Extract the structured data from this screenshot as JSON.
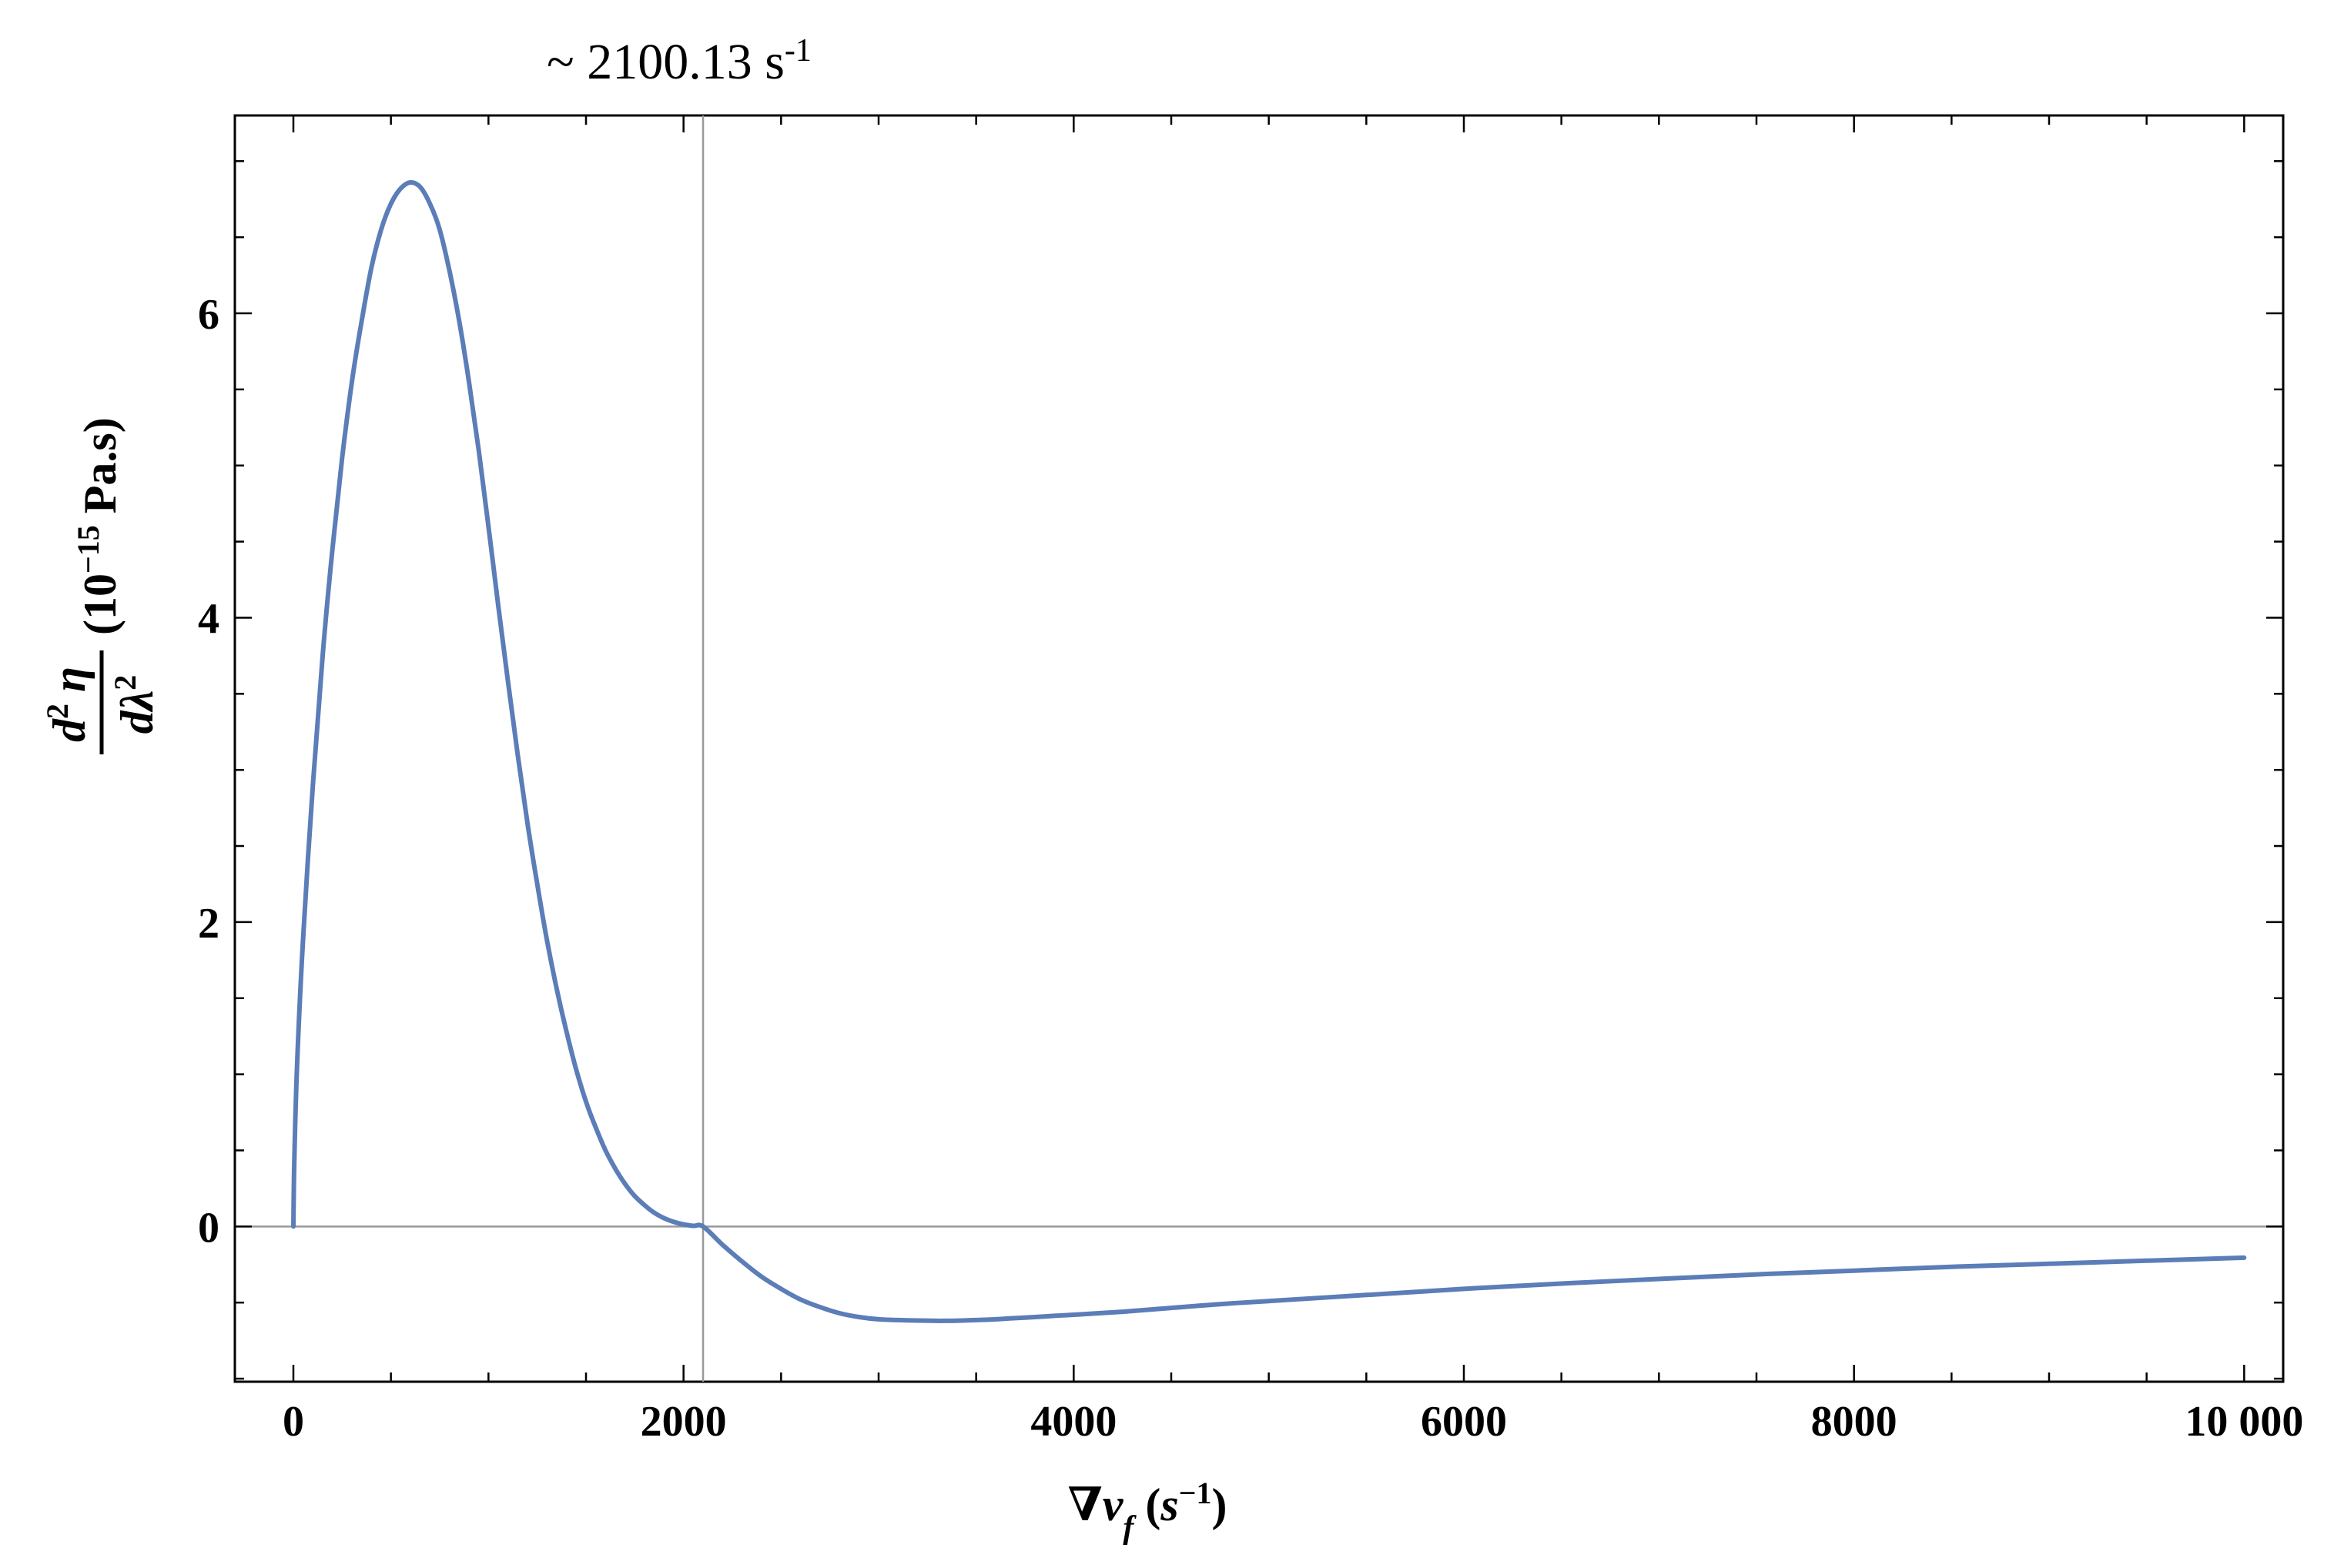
{
  "chart_data": {
    "type": "line",
    "title": "",
    "annotation": {
      "prefix": "~ 2100.13 s",
      "superscript": "-1",
      "x_value": 2100.13
    },
    "xlabel": {
      "nabla": "∇",
      "var": "v",
      "sub": "f",
      "open": " (",
      "unit": "s",
      "unit_sup": "−1",
      "close": ")"
    },
    "ylabel": {
      "num_d": "d",
      "num_sup": "2",
      "num_var": " η",
      "den_d": "d",
      "den_var": "λ",
      "den_sup": "2",
      "unit_open": " (10",
      "unit_sup": "−15",
      "unit_close": " Pa.s)"
    },
    "xlim": [
      -300,
      10200
    ],
    "ylim": [
      -1.02,
      7.3
    ],
    "x_ticks": [
      0,
      2000,
      4000,
      6000,
      8000,
      10000
    ],
    "x_tick_labels": [
      "0",
      "2000",
      "4000",
      "6000",
      "8000",
      "10 000"
    ],
    "y_ticks": [
      0,
      2,
      4,
      6
    ],
    "y_tick_labels": [
      "0",
      "2",
      "4",
      "6"
    ],
    "vertical_line_x": 2100.13,
    "horizontal_line_y": 0,
    "series": [
      {
        "name": "d2eta/dlambda2",
        "color": "#5b7db8",
        "x": [
          0,
          5,
          20,
          50,
          100,
          150,
          200,
          250,
          300,
          350,
          400,
          450,
          500,
          550,
          600,
          650,
          700,
          750,
          800,
          850,
          900,
          950,
          1000,
          1050,
          1100,
          1150,
          1200,
          1250,
          1300,
          1350,
          1400,
          1450,
          1500,
          1550,
          1600,
          1650,
          1700,
          1750,
          1800,
          1850,
          1900,
          1950,
          2000,
          2050,
          2100.13,
          2200,
          2300,
          2400,
          2500,
          2600,
          2700,
          2800,
          2900,
          3000,
          3100,
          3200,
          3300,
          3350,
          3400,
          3500,
          3600,
          3700,
          3800,
          3900,
          4000,
          4250,
          4500,
          4750,
          5000,
          5500,
          6000,
          6500,
          7000,
          7500,
          8000,
          8500,
          9000,
          9500,
          10000
        ],
        "y": [
          0,
          0.45,
          1.1,
          1.9,
          2.9,
          3.75,
          4.45,
          5.05,
          5.55,
          5.95,
          6.3,
          6.55,
          6.72,
          6.82,
          6.86,
          6.83,
          6.72,
          6.55,
          6.28,
          5.95,
          5.55,
          5.1,
          4.6,
          4.08,
          3.58,
          3.1,
          2.65,
          2.25,
          1.88,
          1.56,
          1.28,
          1.03,
          0.82,
          0.65,
          0.5,
          0.38,
          0.28,
          0.2,
          0.14,
          0.09,
          0.055,
          0.03,
          0.014,
          0.004,
          0,
          -0.12,
          -0.23,
          -0.33,
          -0.41,
          -0.48,
          -0.53,
          -0.57,
          -0.595,
          -0.61,
          -0.615,
          -0.618,
          -0.62,
          -0.62,
          -0.619,
          -0.615,
          -0.61,
          -0.602,
          -0.595,
          -0.587,
          -0.58,
          -0.56,
          -0.535,
          -0.51,
          -0.49,
          -0.45,
          -0.41,
          -0.375,
          -0.345,
          -0.315,
          -0.29,
          -0.265,
          -0.245,
          -0.225,
          -0.205
        ]
      }
    ]
  }
}
